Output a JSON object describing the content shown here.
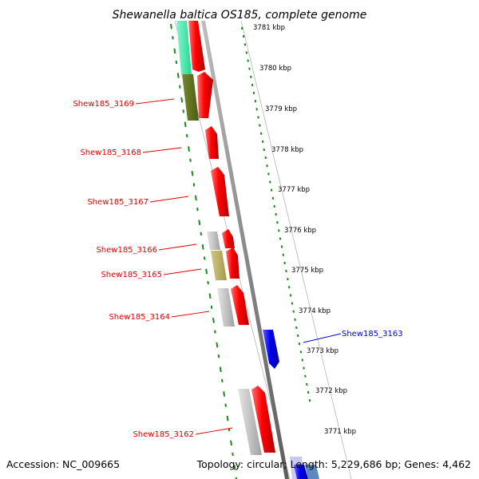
{
  "title": "Shewanella baltica OS185, complete genome",
  "footer": {
    "accession": "Accession: NC_009665",
    "summary": "Topology: circular; Length: 5,229,686 bp; Genes: 4,462"
  },
  "axis": {
    "ticks": [
      "3781 kbp",
      "3780 kbp",
      "3779 kbp",
      "3778 kbp",
      "3777 kbp",
      "3776 kbp",
      "3775 kbp",
      "3774 kbp",
      "3773 kbp",
      "3772 kbp",
      "3771 kbp"
    ]
  },
  "genes": [
    {
      "name": "Shew185_3169",
      "color": "#dd0000"
    },
    {
      "name": "Shew185_3168",
      "color": "#dd0000"
    },
    {
      "name": "Shew185_3167",
      "color": "#dd0000"
    },
    {
      "name": "Shew185_3166",
      "color": "#dd0000"
    },
    {
      "name": "Shew185_3165",
      "color": "#dd0000"
    },
    {
      "name": "Shew185_3164",
      "color": "#dd0000"
    },
    {
      "name": "Shew185_3163",
      "color": "#0000dd"
    },
    {
      "name": "Shew185_3162",
      "color": "#dd0000"
    }
  ],
  "colors": {
    "forward_strand": "#ff0000",
    "reverse_strand": "#0000ff",
    "backbone": "#888888",
    "tick_marks": "#1a8a1a",
    "cog_green": "#556b1f",
    "cog_khaki": "#b8ae62",
    "cog_grey": "#bbbbbb",
    "cog_mint": "#40e8a8"
  }
}
